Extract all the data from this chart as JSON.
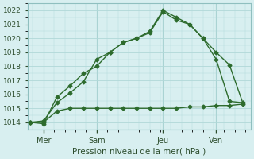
{
  "bg_color": "#d8eff0",
  "grid_color": "#b0d8d8",
  "line_color": "#2d6b2d",
  "title": "Pression niveau de la mer( hPa )",
  "ylim": [
    1013.5,
    1022.5
  ],
  "yticks": [
    1014,
    1015,
    1016,
    1017,
    1018,
    1019,
    1020,
    1021,
    1022
  ],
  "line1_x": [
    0,
    0.5,
    1.0,
    1.5,
    2.0,
    2.5,
    3.0,
    3.5,
    4.0,
    4.5,
    5.0,
    5.5,
    6.0,
    6.5,
    7.0,
    7.5,
    8.0
  ],
  "line1_y": [
    1014.0,
    1013.9,
    1015.8,
    1016.6,
    1017.5,
    1018.0,
    1019.0,
    1019.7,
    1020.0,
    1020.5,
    1022.0,
    1021.5,
    1021.0,
    1020.0,
    1019.0,
    1018.1,
    1015.4
  ],
  "line2_x": [
    0,
    0.5,
    1.0,
    1.5,
    2.0,
    2.5,
    3.0,
    3.5,
    4.0,
    4.5,
    5.0,
    5.5,
    6.0,
    6.5,
    7.0,
    7.5,
    8.0
  ],
  "line2_y": [
    1014.0,
    1014.1,
    1015.4,
    1016.1,
    1016.9,
    1018.5,
    1019.0,
    1019.7,
    1020.0,
    1020.4,
    1021.9,
    1021.3,
    1021.0,
    1020.0,
    1018.5,
    1015.5,
    1015.4
  ],
  "line3_x": [
    0,
    0.5,
    1.0,
    1.5,
    2.0,
    2.5,
    3.0,
    3.5,
    4.0,
    4.5,
    5.0,
    5.5,
    6.0,
    6.5,
    7.0,
    7.5,
    8.0
  ],
  "line3_y": [
    1014.0,
    1014.0,
    1014.8,
    1015.0,
    1015.0,
    1015.0,
    1015.0,
    1015.0,
    1015.0,
    1015.0,
    1015.0,
    1015.0,
    1015.1,
    1015.1,
    1015.2,
    1015.2,
    1015.3
  ],
  "xtick_positions": [
    0.5,
    2.5,
    5.0,
    7.0
  ],
  "xtick_labels": [
    "Mer",
    "Sam",
    "Jeu",
    "Ven"
  ],
  "vline_positions": [
    0.5,
    2.5,
    5.0,
    7.0
  ]
}
